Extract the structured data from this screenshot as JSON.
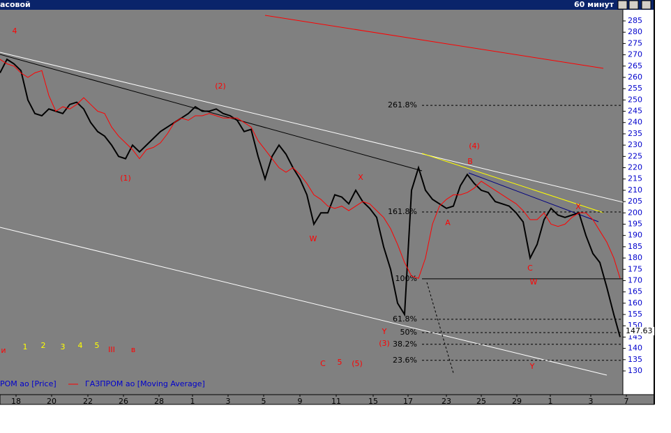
{
  "window": {
    "title": "асовой",
    "timeframe": "60 минут"
  },
  "chart_data": {
    "type": "line",
    "xlim": [
      0,
      93.8
    ],
    "xticks": [
      {
        "value": 2.3,
        "label": "18"
      },
      {
        "value": 7.4,
        "label": "20"
      },
      {
        "value": 12.6,
        "label": "22"
      },
      {
        "value": 17.7,
        "label": "26"
      },
      {
        "value": 22.8,
        "label": "28"
      },
      {
        "value": 27.6,
        "label": "1"
      },
      {
        "value": 32.7,
        "label": "3"
      },
      {
        "value": 37.8,
        "label": "5"
      },
      {
        "value": 43.0,
        "label": "9"
      },
      {
        "value": 48.2,
        "label": "11"
      },
      {
        "value": 53.5,
        "label": "15"
      },
      {
        "value": 58.5,
        "label": "17"
      },
      {
        "value": 64.0,
        "label": "23"
      },
      {
        "value": 69.0,
        "label": "25"
      },
      {
        "value": 74.1,
        "label": "29"
      },
      {
        "value": 78.9,
        "label": "1"
      },
      {
        "value": 84.7,
        "label": "3"
      },
      {
        "value": 89.8,
        "label": "7"
      }
    ],
    "ylim": [
      130,
      285
    ],
    "yticks": [
      130,
      135,
      140,
      145,
      150,
      155,
      160,
      165,
      170,
      175,
      180,
      185,
      190,
      195,
      200,
      205,
      210,
      215,
      220,
      225,
      230,
      235,
      240,
      245,
      250,
      255,
      260,
      265,
      270,
      275,
      280,
      285
    ],
    "x": [
      0,
      1,
      2,
      3,
      4,
      5,
      6,
      7,
      8,
      9,
      10,
      11,
      12,
      13,
      14,
      15,
      16,
      17,
      18,
      19,
      20,
      21,
      22,
      23,
      24,
      25,
      26,
      27,
      28,
      29,
      30,
      31,
      32,
      33,
      34,
      35,
      36,
      37,
      38,
      39,
      40,
      41,
      42,
      43,
      44,
      45,
      46,
      47,
      48,
      49,
      50,
      51,
      52,
      53,
      54,
      55,
      56,
      57,
      58,
      59,
      60,
      61,
      62,
      63,
      64,
      65,
      66,
      67,
      68,
      69,
      70,
      71,
      72,
      73,
      74,
      75,
      76,
      77,
      78,
      79,
      80,
      81,
      82,
      83,
      84,
      85,
      86,
      87,
      88,
      88.9
    ],
    "series": [
      {
        "name": "РОМ ао [Price]",
        "color": "#000000",
        "values": [
          262,
          268,
          266,
          263,
          250,
          244,
          243,
          246,
          245,
          244,
          248,
          249,
          246,
          240,
          236,
          234,
          230,
          225,
          224,
          230,
          227,
          230,
          233,
          236,
          238,
          240,
          242,
          244,
          247,
          245,
          245,
          246,
          244,
          243,
          241,
          236,
          237,
          225,
          215,
          225,
          230,
          226,
          220,
          215,
          208,
          195,
          200,
          200,
          208,
          207,
          204,
          210,
          205,
          202,
          198,
          185,
          175,
          160,
          155,
          210,
          220,
          210,
          206,
          204,
          202,
          203,
          212,
          217,
          213,
          210,
          209,
          205,
          204,
          203,
          200,
          196,
          180,
          186,
          197,
          202,
          199,
          198,
          199,
          200,
          190,
          182,
          178,
          167,
          155,
          145
        ]
      },
      {
        "name": "ГАЗПРОМ ао [Moving Average]",
        "color": "#ff0000",
        "values": [
          268,
          266,
          265,
          262,
          260,
          262,
          263,
          252,
          245,
          247,
          246,
          248,
          251,
          248,
          245,
          244,
          238,
          234,
          231,
          228,
          224,
          228,
          229,
          231,
          235,
          240,
          242,
          241,
          243,
          243,
          244,
          243,
          242,
          242,
          242,
          240,
          238,
          232,
          228,
          224,
          220,
          218,
          220,
          217,
          213,
          208,
          206,
          203,
          202,
          203,
          201,
          203,
          205,
          204,
          201,
          198,
          193,
          186,
          178,
          172,
          171,
          180,
          195,
          203,
          206,
          208,
          208,
          209,
          211,
          214,
          212,
          210,
          208,
          206,
          204,
          201,
          197,
          197,
          200,
          195,
          194,
          195,
          198,
          200,
          200,
          197,
          192,
          187,
          180,
          171
        ]
      }
    ],
    "last_price": {
      "value": 147.63,
      "label": "147.63"
    },
    "levels": [
      {
        "value": 247.6,
        "label": "261.8%",
        "style": "dashed"
      },
      {
        "value": 200.4,
        "label": "161.8%",
        "style": "dashed"
      },
      {
        "value": 170.8,
        "label": "100%",
        "style": "solid"
      },
      {
        "value": 152.9,
        "label": "61.8%",
        "style": "dashed"
      },
      {
        "value": 147,
        "label": "50%",
        "style": "dashed"
      },
      {
        "value": 141.8,
        "label": "38.2%",
        "style": "dashed"
      },
      {
        "value": 134.7,
        "label": "23.6%",
        "style": "dashed"
      }
    ],
    "annotations": [
      {
        "text": "4",
        "color": "#ff0000"
      },
      {
        "text": "(2)",
        "color": "#ff0000"
      },
      {
        "text": "(1)",
        "color": "#ff0000"
      },
      {
        "text": "W",
        "color": "#ff0000"
      },
      {
        "text": "X",
        "color": "#ff0000"
      },
      {
        "text": "Y",
        "color": "#ff0000"
      },
      {
        "text": "(3)",
        "color": "#ff0000"
      },
      {
        "text": "(4)",
        "color": "#ff0000"
      },
      {
        "text": "B",
        "color": "#ff0000"
      },
      {
        "text": "A",
        "color": "#ff0000"
      },
      {
        "text": "C",
        "color": "#ff0000"
      },
      {
        "text": "W",
        "color": "#ff0000"
      },
      {
        "text": "X",
        "color": "#ff0000"
      },
      {
        "text": "Y",
        "color": "#ff0000"
      },
      {
        "text": "C",
        "color": "#ff0000"
      },
      {
        "text": "5",
        "color": "#ff0000"
      },
      {
        "text": "(5)",
        "color": "#ff0000"
      },
      {
        "text": "и",
        "color": "#ff0000"
      },
      {
        "text": "1",
        "color": "#ffff00"
      },
      {
        "text": "2",
        "color": "#ffff00"
      },
      {
        "text": "3",
        "color": "#ffff00"
      },
      {
        "text": "4",
        "color": "#ffff00"
      },
      {
        "text": "5",
        "color": "#ffff00"
      },
      {
        "text": "III",
        "color": "#ff0000"
      },
      {
        "text": "в",
        "color": "#ff0000"
      }
    ]
  }
}
